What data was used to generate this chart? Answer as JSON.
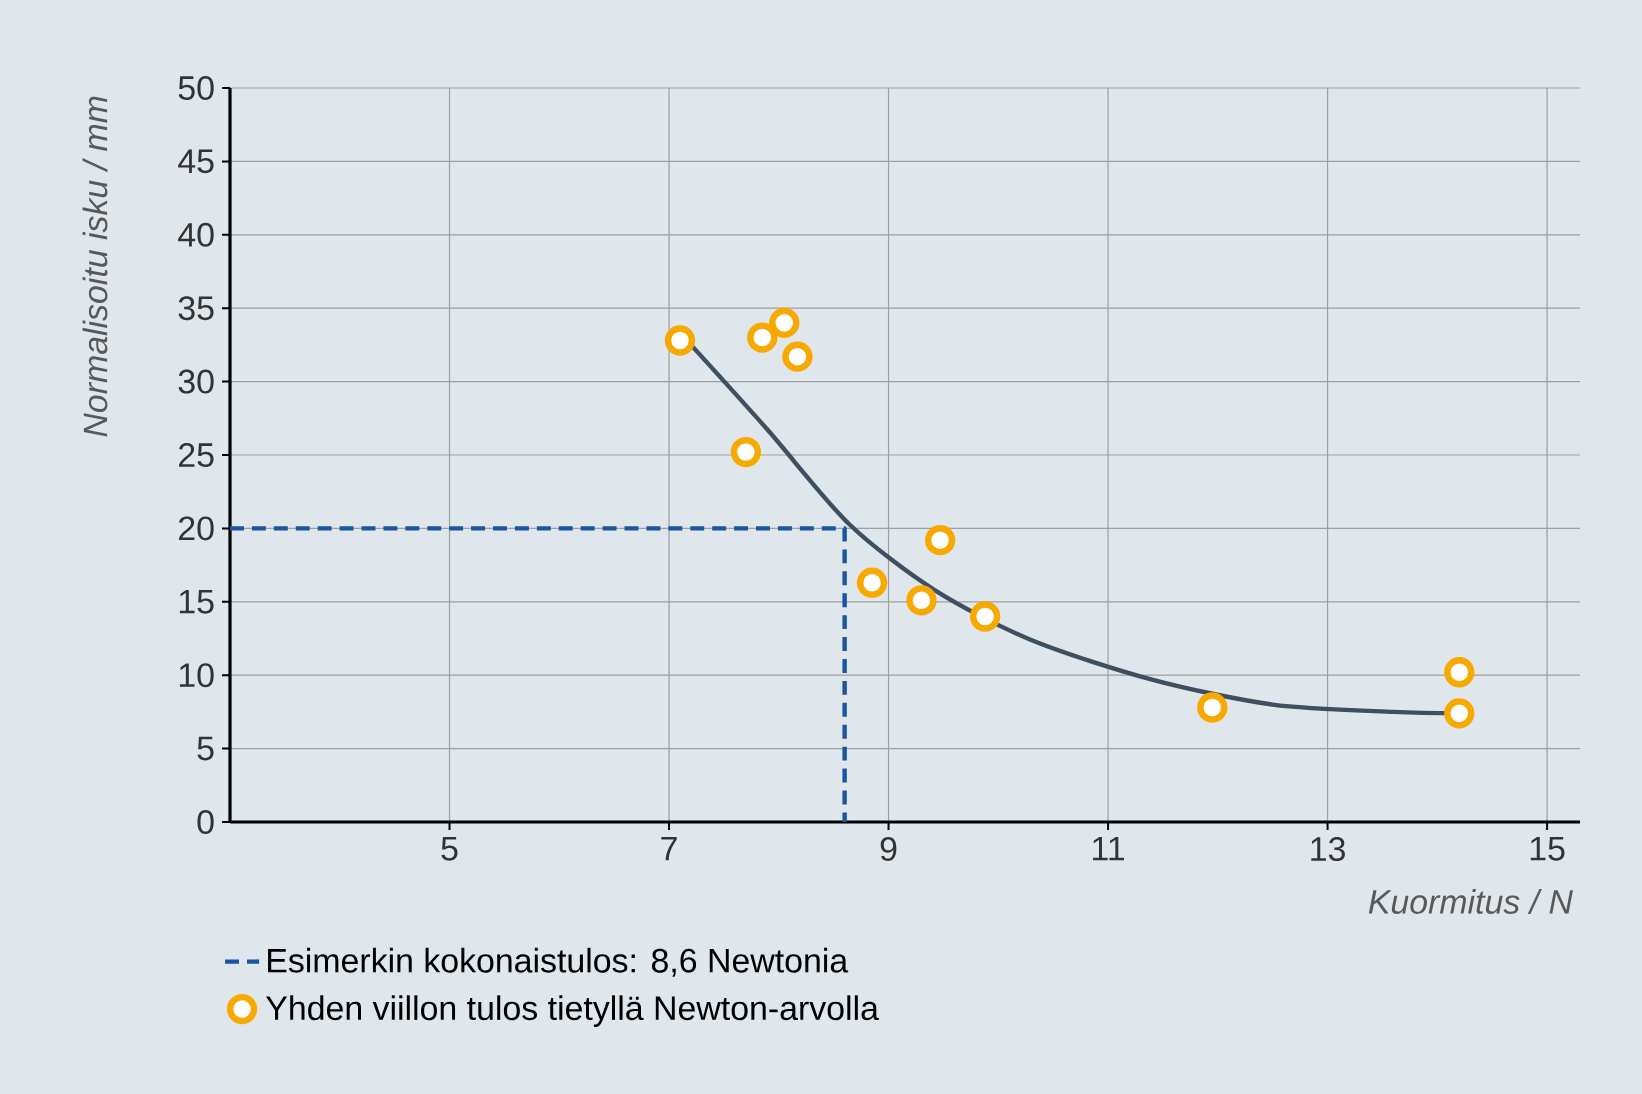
{
  "chart_data": {
    "type": "scatter",
    "xlabel": "Kuormitus / N",
    "ylabel": "Normalisoitu isku / mm",
    "xlim": [
      3,
      15.3
    ],
    "ylim": [
      0,
      50
    ],
    "xticks": [
      5,
      7,
      9,
      11,
      13,
      15
    ],
    "yticks": [
      0,
      5,
      10,
      15,
      20,
      25,
      30,
      35,
      40,
      45,
      50
    ],
    "grid": true,
    "legend": "bottom left",
    "series": [
      {
        "name": "Esimerkin kokonaistulos: 8,6 Newtonia",
        "type": "line",
        "line_style": "dashed",
        "color": "#1a55a0",
        "x": [
          3,
          8.6,
          8.6
        ],
        "values": [
          20,
          20,
          0
        ]
      },
      {
        "name": "Yhden viillon tulos tietyllä Newton-arvolla",
        "marker": "circle",
        "color": "#f7a900",
        "x": [
          7.1,
          7.7,
          7.85,
          8.05,
          8.17,
          8.85,
          9.3,
          9.47,
          9.88,
          11.95,
          14.2,
          14.2
        ],
        "values": [
          32.8,
          25.2,
          33,
          34,
          31.7,
          16.3,
          15.1,
          19.2,
          14,
          7.8,
          10.2,
          7.4
        ]
      },
      {
        "type": "line",
        "line_style": "solid",
        "color": "#3d4f60",
        "x": [
          7.2,
          7.9,
          8.64,
          9.42,
          10.3,
          11.4,
          12.5,
          13.6,
          14.2
        ],
        "values": [
          32.5,
          26.7,
          20.3,
          15.8,
          12.4,
          9.7,
          8,
          7.5,
          7.4
        ]
      }
    ]
  }
}
